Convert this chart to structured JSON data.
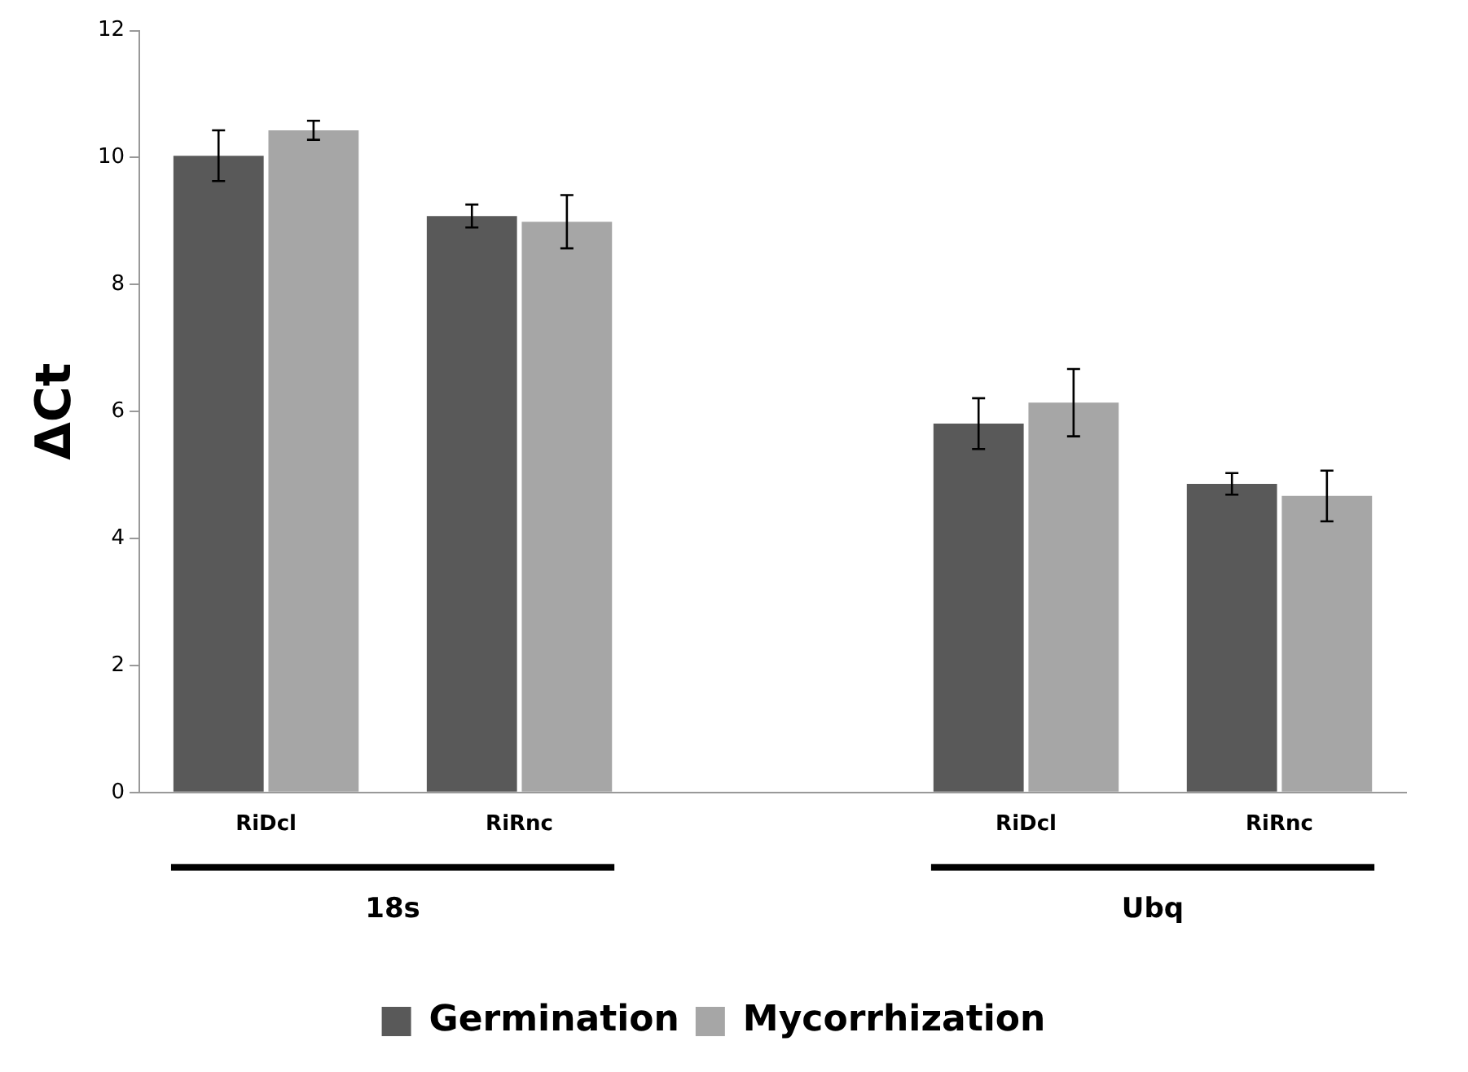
{
  "chart_data": {
    "type": "bar",
    "ylabel": "ΔCt",
    "categories": [
      "RiDcl",
      "RiRnc",
      null,
      "RiDcl",
      "RiRnc"
    ],
    "series": [
      {
        "name": "Germination",
        "color": "#595959",
        "values": [
          10.03,
          9.08,
          null,
          5.81,
          4.86
        ],
        "errors": [
          0.4,
          0.18,
          null,
          0.4,
          0.17
        ]
      },
      {
        "name": "Mycorrhization",
        "color": "#a6a6a6",
        "values": [
          10.43,
          8.99,
          null,
          6.14,
          4.67
        ],
        "errors": [
          0.15,
          0.42,
          null,
          0.53,
          0.4
        ]
      }
    ],
    "annotations": [
      "18s",
      "Ubq"
    ],
    "ylim": [
      0,
      12
    ],
    "yticks": [
      0,
      2,
      4,
      6,
      8,
      10,
      12
    ],
    "grid": false,
    "legend": "bottom"
  }
}
